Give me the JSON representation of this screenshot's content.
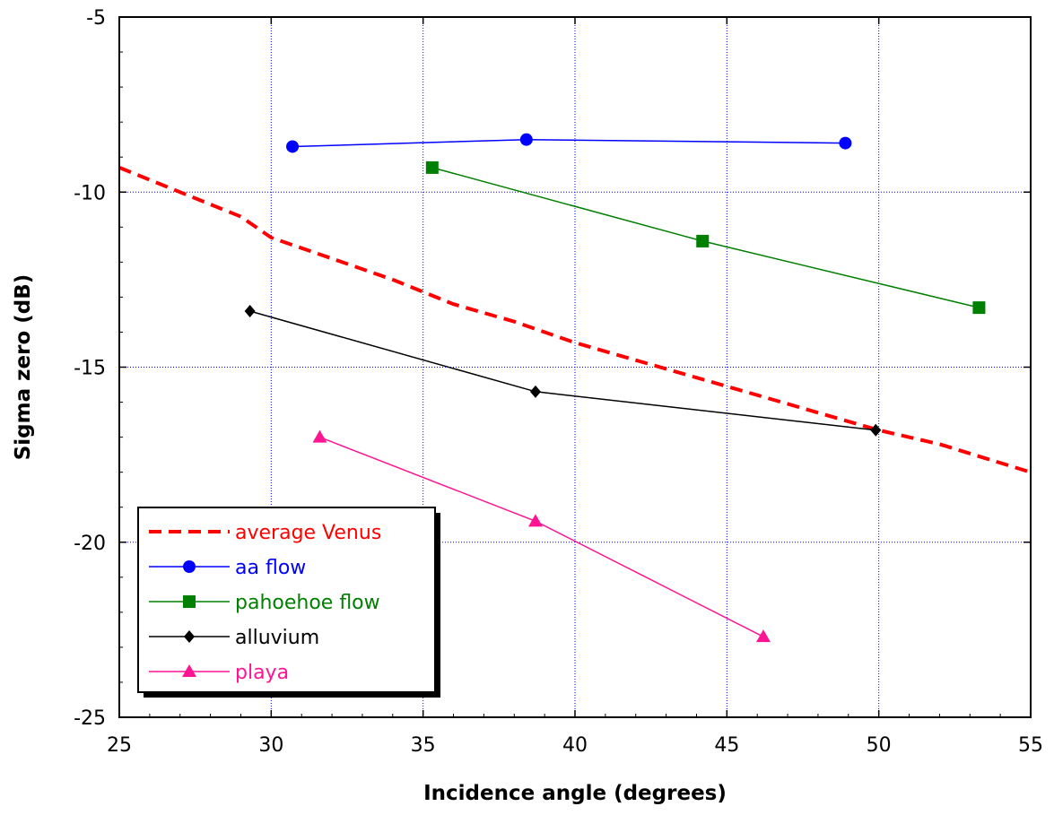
{
  "chart_data": {
    "type": "line",
    "title": "",
    "xlabel": "Incidence angle (degrees)",
    "ylabel": "Sigma zero (dB)",
    "xlim": [
      25,
      55
    ],
    "ylim": [
      -25,
      -5
    ],
    "x_ticks": [
      25,
      30,
      35,
      40,
      45,
      50,
      55
    ],
    "y_ticks": [
      -25,
      -20,
      -15,
      -10,
      -5
    ],
    "grid": true,
    "legend_position": "bottom-left",
    "series": [
      {
        "name": "average Venus",
        "color": "#ff0000",
        "style": "dashed",
        "marker": "none",
        "points": [
          [
            25,
            -9.3
          ],
          [
            27,
            -10.0
          ],
          [
            29,
            -10.7
          ],
          [
            30,
            -11.3
          ],
          [
            32,
            -11.9
          ],
          [
            34,
            -12.5
          ],
          [
            36,
            -13.2
          ],
          [
            38,
            -13.7
          ],
          [
            40,
            -14.3
          ],
          [
            42,
            -14.8
          ],
          [
            44,
            -15.3
          ],
          [
            46,
            -15.8
          ],
          [
            48,
            -16.3
          ],
          [
            50,
            -16.8
          ],
          [
            52,
            -17.2
          ],
          [
            55,
            -18.0
          ]
        ]
      },
      {
        "name": "aa flow",
        "color": "#0000ff",
        "style": "solid",
        "marker": "circle",
        "points": [
          [
            30.7,
            -8.7
          ],
          [
            38.4,
            -8.5
          ],
          [
            48.9,
            -8.6
          ]
        ]
      },
      {
        "name": "pahoehoe flow",
        "color": "#008000",
        "style": "solid",
        "marker": "square",
        "points": [
          [
            35.3,
            -9.3
          ],
          [
            44.2,
            -11.4
          ],
          [
            53.3,
            -13.3
          ]
        ]
      },
      {
        "name": "alluvium",
        "color": "#000000",
        "style": "solid",
        "marker": "diamond",
        "points": [
          [
            29.3,
            -13.4
          ],
          [
            38.7,
            -15.7
          ],
          [
            49.9,
            -16.8
          ]
        ]
      },
      {
        "name": "playa",
        "color": "#ff1493",
        "style": "solid",
        "marker": "triangle",
        "points": [
          [
            31.6,
            -17.0
          ],
          [
            38.7,
            -19.4
          ],
          [
            46.2,
            -22.7
          ]
        ]
      }
    ]
  }
}
